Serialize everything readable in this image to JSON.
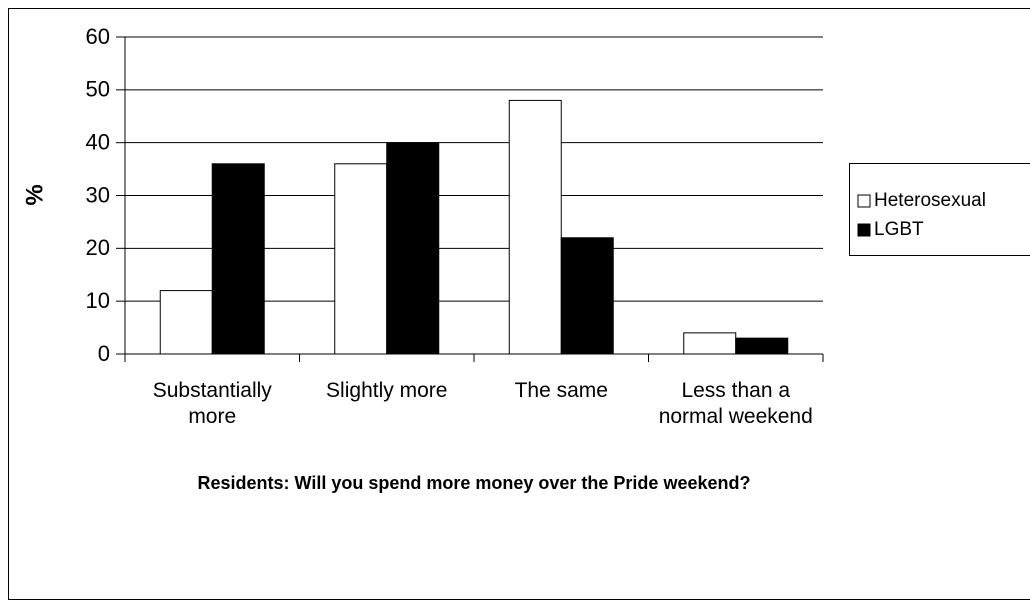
{
  "chart_data": {
    "type": "bar",
    "x_label": "Residents: Will you spend more money over the Pride weekend?",
    "y_label": "%",
    "categories": [
      "Substantially more",
      "Slightly more",
      "The same",
      "Less than a normal weekend"
    ],
    "series": [
      {
        "name": "Heterosexual",
        "color": "#ffffff",
        "values": [
          12,
          36,
          48,
          4
        ]
      },
      {
        "name": "LGBT",
        "color": "#000000",
        "values": [
          36,
          40,
          22,
          3
        ]
      }
    ],
    "ylim": [
      0,
      60
    ],
    "yticks": [
      0,
      10,
      20,
      30,
      40,
      50,
      60
    ],
    "grid": true,
    "legend": "right"
  }
}
